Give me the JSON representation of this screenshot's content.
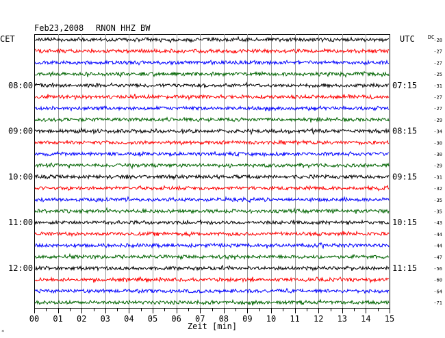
{
  "header": {
    "date": "Feb23,2008",
    "station": "RNON HHZ BW",
    "left_zone": "CET",
    "right_zone": "UTC",
    "dc_label": "DC"
  },
  "footer": {
    "xlabel": "Zeit [min]",
    "corner_mark": "*"
  },
  "chart_data": {
    "type": "line",
    "title": "Feb23,2008 RNON HHZ BW",
    "xlabel": "Zeit [min]",
    "ylabel": "",
    "x_ticks": [
      "00",
      "01",
      "02",
      "03",
      "04",
      "05",
      "06",
      "07",
      "08",
      "09",
      "10",
      "11",
      "12",
      "13",
      "14",
      "15"
    ],
    "xlim": [
      0,
      15
    ],
    "x_minor_tick_step_min": 0.5,
    "grid": true,
    "trace_minutes_per_row": 15,
    "row_count": 24,
    "trace_colors": [
      "#000000",
      "#ff0000",
      "#0000ff",
      "#006400"
    ],
    "hour_labels_cet": [
      "08:00",
      "09:00",
      "10:00",
      "11:00",
      "12:00"
    ],
    "hour_labels_utc": [
      "07:15",
      "08:15",
      "09:15",
      "10:15",
      "11:15"
    ],
    "hour_label_rows": [
      4,
      8,
      12,
      16,
      20
    ],
    "dc_offsets": [
      -28,
      -27,
      -27,
      -25,
      -31,
      -27,
      -27,
      -29,
      -34,
      -30,
      -30,
      -29,
      -31,
      -32,
      -35,
      -35,
      -43,
      -44,
      -44,
      -47,
      -56,
      -60,
      -64,
      -71
    ]
  }
}
